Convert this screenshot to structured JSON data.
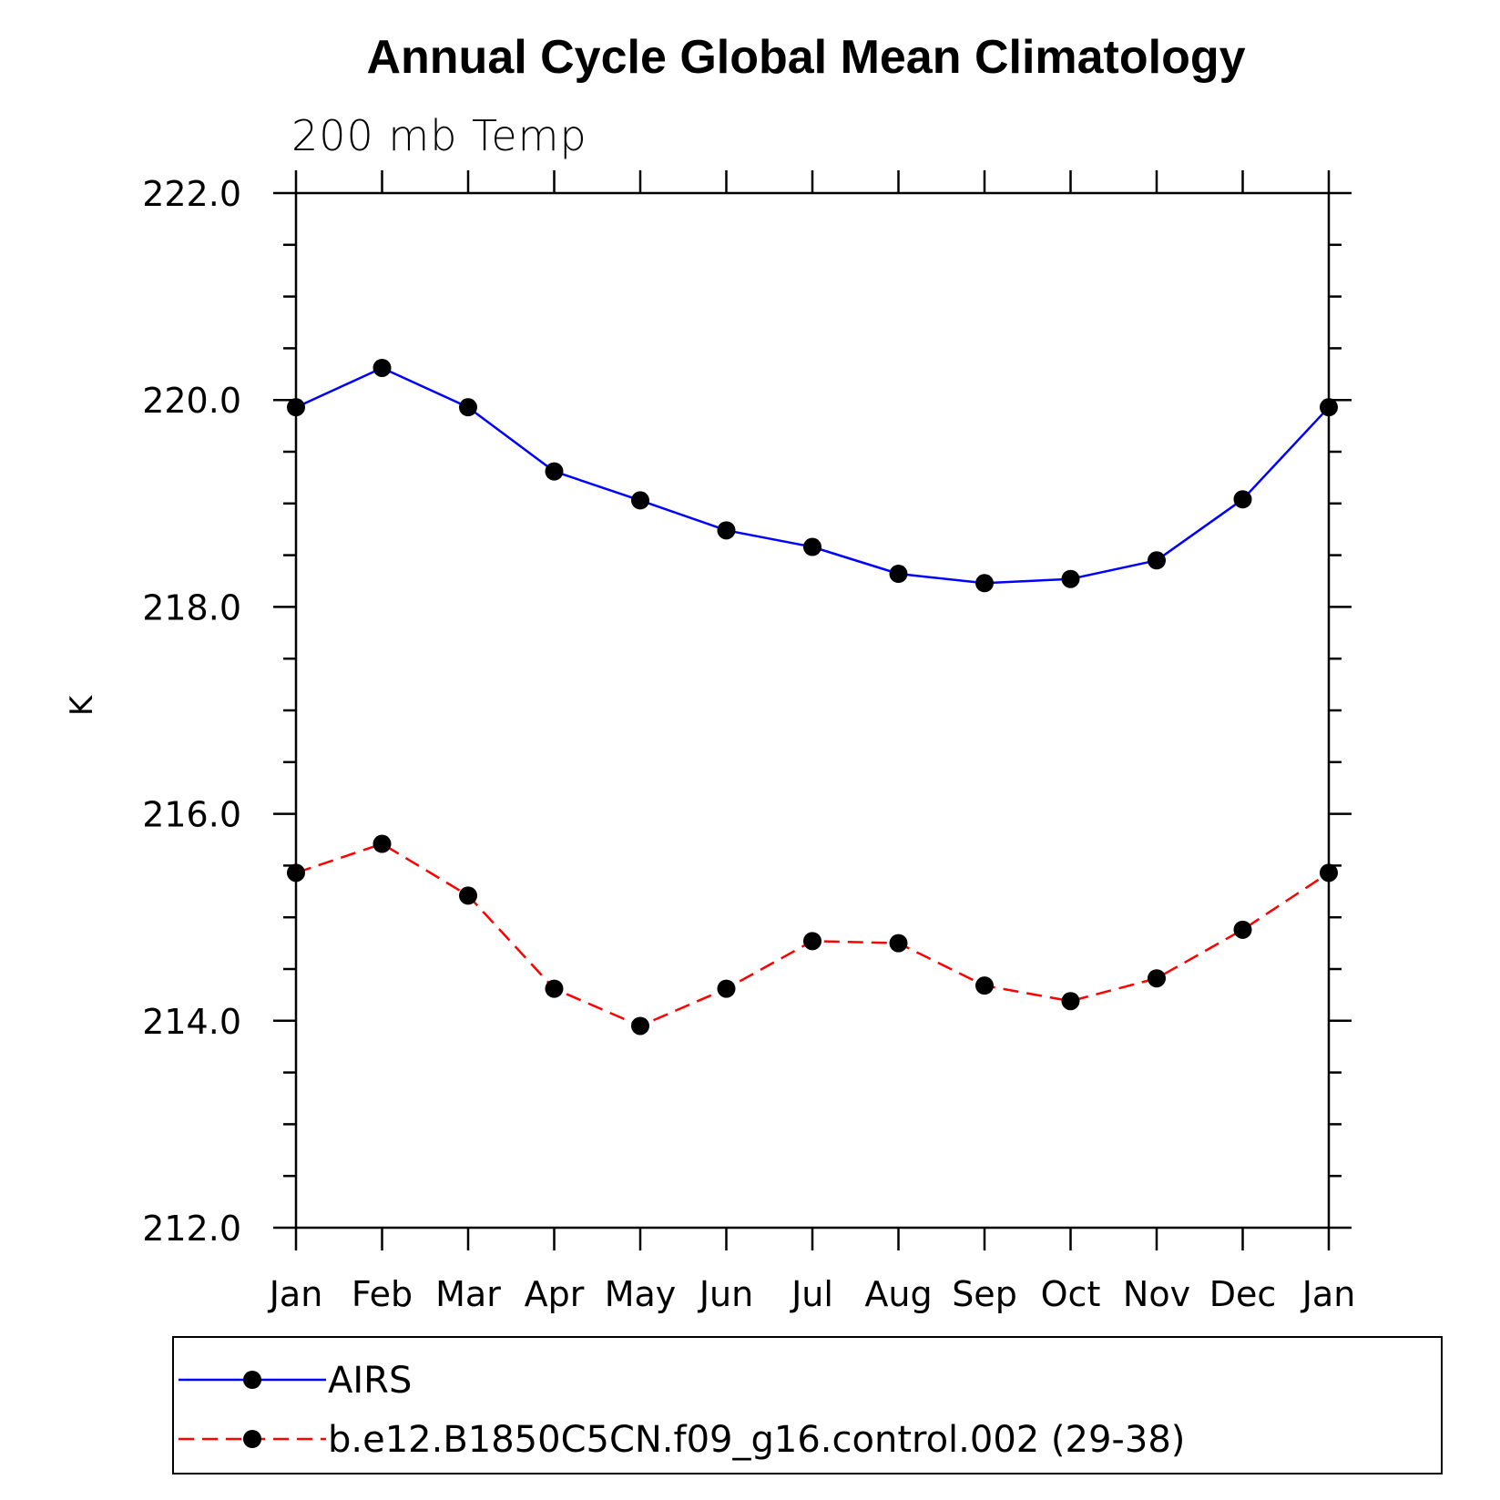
{
  "chart_data": {
    "type": "line",
    "title": "Annual Cycle Global Mean Climatology",
    "subtitle": "200 mb Temp",
    "xlabel": "",
    "ylabel": "K",
    "categories": [
      "Jan",
      "Feb",
      "Mar",
      "Apr",
      "May",
      "Jun",
      "Jul",
      "Aug",
      "Sep",
      "Oct",
      "Nov",
      "Dec",
      "Jan"
    ],
    "ylim": [
      212.0,
      222.0
    ],
    "yticks": [
      "212.0",
      "214.0",
      "216.0",
      "218.0",
      "220.0",
      "222.0"
    ],
    "grid": false,
    "legend_position": "bottom",
    "series": [
      {
        "name": "AIRS",
        "color": "#0000ff",
        "line_style": "solid",
        "marker": "filled-circle",
        "values": [
          219.93,
          220.31,
          219.93,
          219.31,
          219.03,
          218.74,
          218.58,
          218.32,
          218.23,
          218.27,
          218.45,
          219.04,
          219.93
        ]
      },
      {
        "name": "b.e12.B1850C5CN.f09_g16.control.002 (29-38)",
        "color": "#ff0000",
        "line_style": "dashed",
        "marker": "filled-circle",
        "values": [
          215.43,
          215.71,
          215.21,
          214.31,
          213.95,
          214.31,
          214.77,
          214.75,
          214.34,
          214.19,
          214.41,
          214.88,
          215.43
        ]
      }
    ]
  }
}
